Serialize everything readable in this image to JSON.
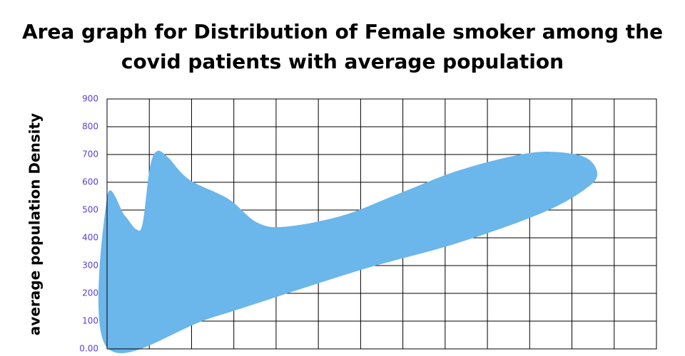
{
  "chart_data": {
    "type": "area",
    "title": [
      "Area graph for Distribution of Female smoker among the",
      "covid patients with average population"
    ],
    "y_label": "average population Density",
    "color": "#6bb6ea",
    "x": [
      0,
      0.42,
      0.68,
      0.84,
      1.01,
      1.18,
      1.44,
      1.94,
      2.87,
      3.55,
      4.22,
      5.57,
      6.92,
      8.27,
      9.62,
      10.47,
      11.31,
      11.6,
      11.31,
      10.3,
      8.27,
      5.91,
      2.53,
      0
    ],
    "values": [
      545,
      480,
      432,
      450,
      650,
      712,
      690,
      610,
      540,
      455,
      440,
      480,
      560,
      640,
      695,
      710,
      690,
      630,
      575,
      490,
      380,
      280,
      115,
      5
    ],
    "xlim": [
      0,
      13
    ],
    "ylim": [
      0,
      900
    ],
    "yticks": [
      {
        "value": 0,
        "label": "0.00"
      },
      100,
      200,
      300,
      400,
      500,
      600,
      700,
      800,
      900
    ],
    "grid": true
  }
}
